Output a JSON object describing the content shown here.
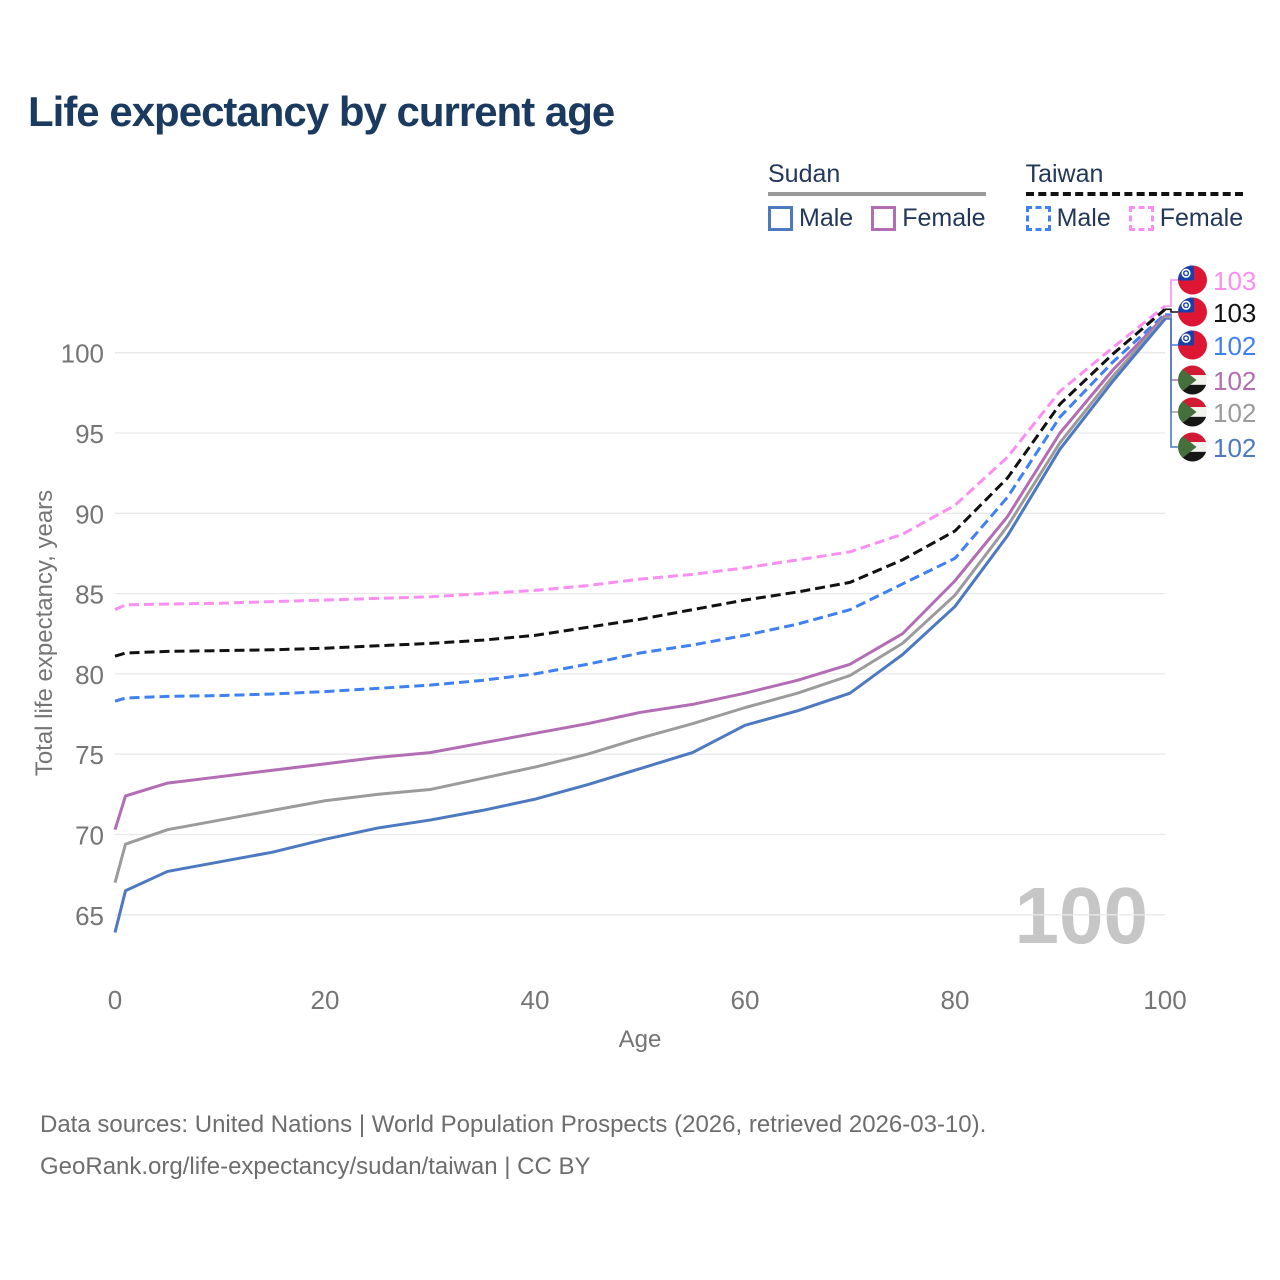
{
  "title": "Life expectancy by current age",
  "watermark_age": "100",
  "legend": {
    "groups": [
      {
        "name": "Sudan",
        "underline": {
          "style": "solid",
          "color": "#9a9a9a"
        },
        "items": [
          {
            "label": "Male",
            "color": "#4d79c0",
            "dashed": false
          },
          {
            "label": "Female",
            "color": "#b26db4",
            "dashed": false
          }
        ]
      },
      {
        "name": "Taiwan",
        "underline": {
          "style": "dashed",
          "color": "#111111"
        },
        "items": [
          {
            "label": "Male",
            "color": "#3f80f2",
            "dashed": true
          },
          {
            "label": "Female",
            "color": "#fa8ef2",
            "dashed": true
          }
        ]
      }
    ]
  },
  "chart_data": {
    "type": "line",
    "title": "Life expectancy by current age",
    "xlabel": "Age",
    "ylabel": "Total life expectancy, years",
    "xlim": [
      0,
      100
    ],
    "ylim": [
      62,
      106
    ],
    "x_ticks": [
      0,
      20,
      40,
      60,
      80,
      100
    ],
    "y_ticks": [
      65,
      70,
      75,
      80,
      85,
      90,
      95,
      100
    ],
    "grid": true,
    "legend_position": "top-right",
    "x": [
      0,
      1,
      5,
      10,
      15,
      20,
      25,
      30,
      35,
      40,
      45,
      50,
      55,
      60,
      65,
      70,
      75,
      80,
      85,
      90,
      95,
      100
    ],
    "series": [
      {
        "name": "Taiwan Female",
        "country": "taiwan",
        "color": "#fa8ef2",
        "dashed": true,
        "end_label": "103",
        "flag": "taiwan",
        "values": [
          84.0,
          84.3,
          84.35,
          84.4,
          84.5,
          84.6,
          84.7,
          84.8,
          85.0,
          85.2,
          85.5,
          85.9,
          86.2,
          86.6,
          87.1,
          87.6,
          88.7,
          90.5,
          93.5,
          97.6,
          100.3,
          102.9
        ]
      },
      {
        "name": "Taiwan Total",
        "country": "taiwan",
        "color": "#111111",
        "dashed": true,
        "end_label": "103",
        "flag": "taiwan",
        "values": [
          81.1,
          81.3,
          81.4,
          81.45,
          81.5,
          81.6,
          81.75,
          81.9,
          82.1,
          82.4,
          82.9,
          83.4,
          84.0,
          84.6,
          85.1,
          85.7,
          87.1,
          88.9,
          92.2,
          96.8,
          99.9,
          102.7
        ]
      },
      {
        "name": "Taiwan Male",
        "country": "taiwan",
        "color": "#3f80f2",
        "dashed": true,
        "end_label": "102",
        "flag": "taiwan",
        "values": [
          78.3,
          78.5,
          78.6,
          78.65,
          78.75,
          78.9,
          79.1,
          79.3,
          79.6,
          80.0,
          80.6,
          81.3,
          81.8,
          82.4,
          83.1,
          84.0,
          85.6,
          87.2,
          91.0,
          96.0,
          99.4,
          102.4
        ]
      },
      {
        "name": "Sudan Female",
        "country": "sudan",
        "color": "#b26db4",
        "dashed": false,
        "end_label": "102",
        "flag": "sudan",
        "values": [
          70.3,
          72.4,
          73.2,
          73.6,
          74.0,
          74.4,
          74.8,
          75.1,
          75.7,
          76.3,
          76.9,
          77.6,
          78.1,
          78.8,
          79.6,
          80.6,
          82.5,
          85.8,
          89.8,
          95.0,
          98.9,
          102.3
        ]
      },
      {
        "name": "Sudan Total",
        "country": "sudan",
        "color": "#9b9b9b",
        "dashed": false,
        "end_label": "102",
        "flag": "sudan",
        "values": [
          67.0,
          69.4,
          70.3,
          70.9,
          71.5,
          72.1,
          72.5,
          72.8,
          73.5,
          74.2,
          75.0,
          76.0,
          76.9,
          77.9,
          78.8,
          79.9,
          81.9,
          84.9,
          89.2,
          94.4,
          98.5,
          102.2
        ]
      },
      {
        "name": "Sudan Male",
        "country": "sudan",
        "color": "#4d79c0",
        "dashed": false,
        "end_label": "102",
        "flag": "sudan",
        "values": [
          63.9,
          66.5,
          67.7,
          68.3,
          68.9,
          69.7,
          70.4,
          70.9,
          71.5,
          72.2,
          73.1,
          74.1,
          75.1,
          76.8,
          77.7,
          78.8,
          81.2,
          84.2,
          88.6,
          94.0,
          98.2,
          102.1
        ]
      }
    ]
  },
  "footer": {
    "line1": "Data sources: United Nations | World Population Prospects (2026, retrieved 2026-03-10).",
    "line2": "GeoRank.org/life-expectancy/sudan/taiwan | CC BY"
  }
}
